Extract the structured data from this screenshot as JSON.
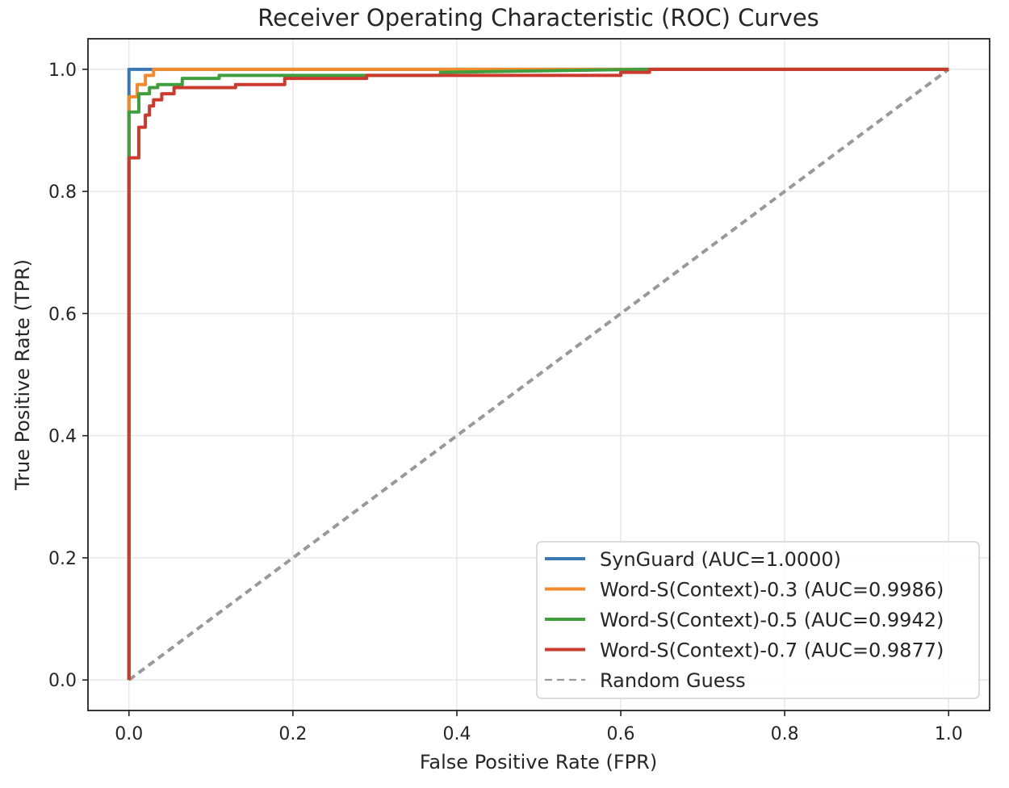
{
  "chart_data": {
    "type": "line",
    "title": "Receiver Operating Characteristic (ROC) Curves",
    "xlabel": "False Positive Rate (FPR)",
    "ylabel": "True Positive Rate (TPR)",
    "xlim": [
      -0.05,
      1.05
    ],
    "ylim": [
      -0.05,
      1.05
    ],
    "xticks": [
      0.0,
      0.2,
      0.4,
      0.6,
      0.8,
      1.0
    ],
    "yticks": [
      0.0,
      0.2,
      0.4,
      0.6,
      0.8,
      1.0
    ],
    "xtick_labels": [
      "0.0",
      "0.2",
      "0.4",
      "0.6",
      "0.8",
      "1.0"
    ],
    "ytick_labels": [
      "0.0",
      "0.2",
      "0.4",
      "0.6",
      "0.8",
      "1.0"
    ],
    "grid": true,
    "legend_position": "bottom-right",
    "series": [
      {
        "name": "SynGuard (AUC=1.0000)",
        "color": "#3a78b4",
        "style": "solid",
        "x": [
          0.0,
          0.0,
          0.17,
          1.0
        ],
        "y": [
          0.0,
          1.0,
          1.0,
          1.0
        ]
      },
      {
        "name": "Word-S(Context)-0.3 (AUC=0.9986)",
        "color": "#f28b2b",
        "style": "solid",
        "x": [
          0.0,
          0.0,
          0.0,
          0.01,
          0.01,
          0.02,
          0.02,
          0.03,
          0.03,
          0.45,
          1.0
        ],
        "y": [
          0.0,
          0.935,
          0.955,
          0.955,
          0.975,
          0.975,
          0.99,
          0.99,
          1.0,
          1.0,
          1.0
        ]
      },
      {
        "name": "Word-S(Context)-0.5 (AUC=0.9942)",
        "color": "#3f9f3f",
        "style": "solid",
        "x": [
          0.0,
          0.0,
          0.0,
          0.012,
          0.012,
          0.025,
          0.025,
          0.035,
          0.035,
          0.065,
          0.065,
          0.11,
          0.11,
          0.38,
          0.38,
          0.63,
          1.0
        ],
        "y": [
          0.0,
          0.855,
          0.93,
          0.93,
          0.96,
          0.96,
          0.97,
          0.97,
          0.975,
          0.975,
          0.985,
          0.985,
          0.99,
          0.99,
          0.995,
          1.0,
          1.0
        ]
      },
      {
        "name": "Word-S(Context)-0.7 (AUC=0.9877)",
        "color": "#cc3a2e",
        "style": "solid",
        "x": [
          0.0,
          0.0,
          0.0,
          0.012,
          0.012,
          0.02,
          0.02,
          0.025,
          0.025,
          0.03,
          0.03,
          0.04,
          0.04,
          0.055,
          0.055,
          0.13,
          0.13,
          0.19,
          0.19,
          0.29,
          0.29,
          0.6,
          0.6,
          0.635,
          0.635,
          1.0
        ],
        "y": [
          0.0,
          0.855,
          0.855,
          0.855,
          0.905,
          0.905,
          0.925,
          0.925,
          0.94,
          0.94,
          0.95,
          0.95,
          0.96,
          0.96,
          0.97,
          0.97,
          0.975,
          0.975,
          0.985,
          0.985,
          0.99,
          0.99,
          0.995,
          0.995,
          1.0,
          1.0
        ]
      },
      {
        "name": "Random Guess",
        "color": "#999999",
        "style": "dashed",
        "x": [
          0.0,
          1.0
        ],
        "y": [
          0.0,
          1.0
        ]
      }
    ]
  }
}
